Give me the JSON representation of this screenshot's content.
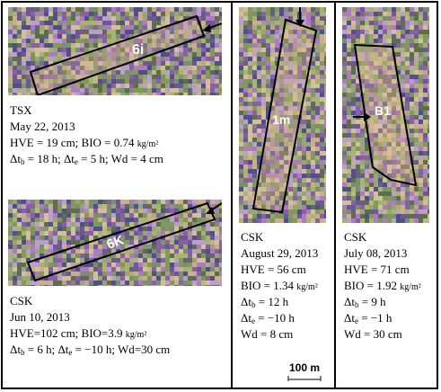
{
  "panels": {
    "tsx": {
      "label": "6i",
      "sensor": "TSX",
      "date": "May 22, 2013",
      "hve": "HVE = 19 cm;",
      "bio": "BIO = 0.74",
      "bio_unit": "kg/m²",
      "dtb": " = 18 h; ",
      "dte": " = 5 h; Wd = 4 cm"
    },
    "csk_jun": {
      "label": "6K",
      "sensor": "CSK",
      "date": "Jun 10, 2013",
      "hve_bio": "HVE=102 cm; BIO=3.9",
      "bio_unit": "kg/m²",
      "dtb": " = 6 h; ",
      "dte": " = −10 h; Wd=30 cm"
    },
    "csk_aug": {
      "label": "1m",
      "sensor": "CSK",
      "date": "August 29, 2013",
      "hve": "HVE = 56 cm",
      "bio": "BIO = 1.34",
      "bio_unit": "kg/m²",
      "dtb": " = 12 h",
      "dte": " = −10 h",
      "wd": "Wd = 8 cm"
    },
    "csk_jul": {
      "label": "B1",
      "sensor": "CSK",
      "date": "July 08, 2013",
      "hve": "HVE = 71 cm",
      "bio": "BIO = 1.92",
      "bio_unit": "kg/m²",
      "dtb": " = 9 h",
      "dte": " = −1 h",
      "wd": "Wd = 30 cm"
    }
  },
  "symbols": {
    "delta": "Δt",
    "sub_b": "b",
    "sub_e": "e"
  },
  "scale_bar": {
    "label": "100 m"
  },
  "colors": {
    "label_text": "#ffffff",
    "polygon": "#000000"
  }
}
